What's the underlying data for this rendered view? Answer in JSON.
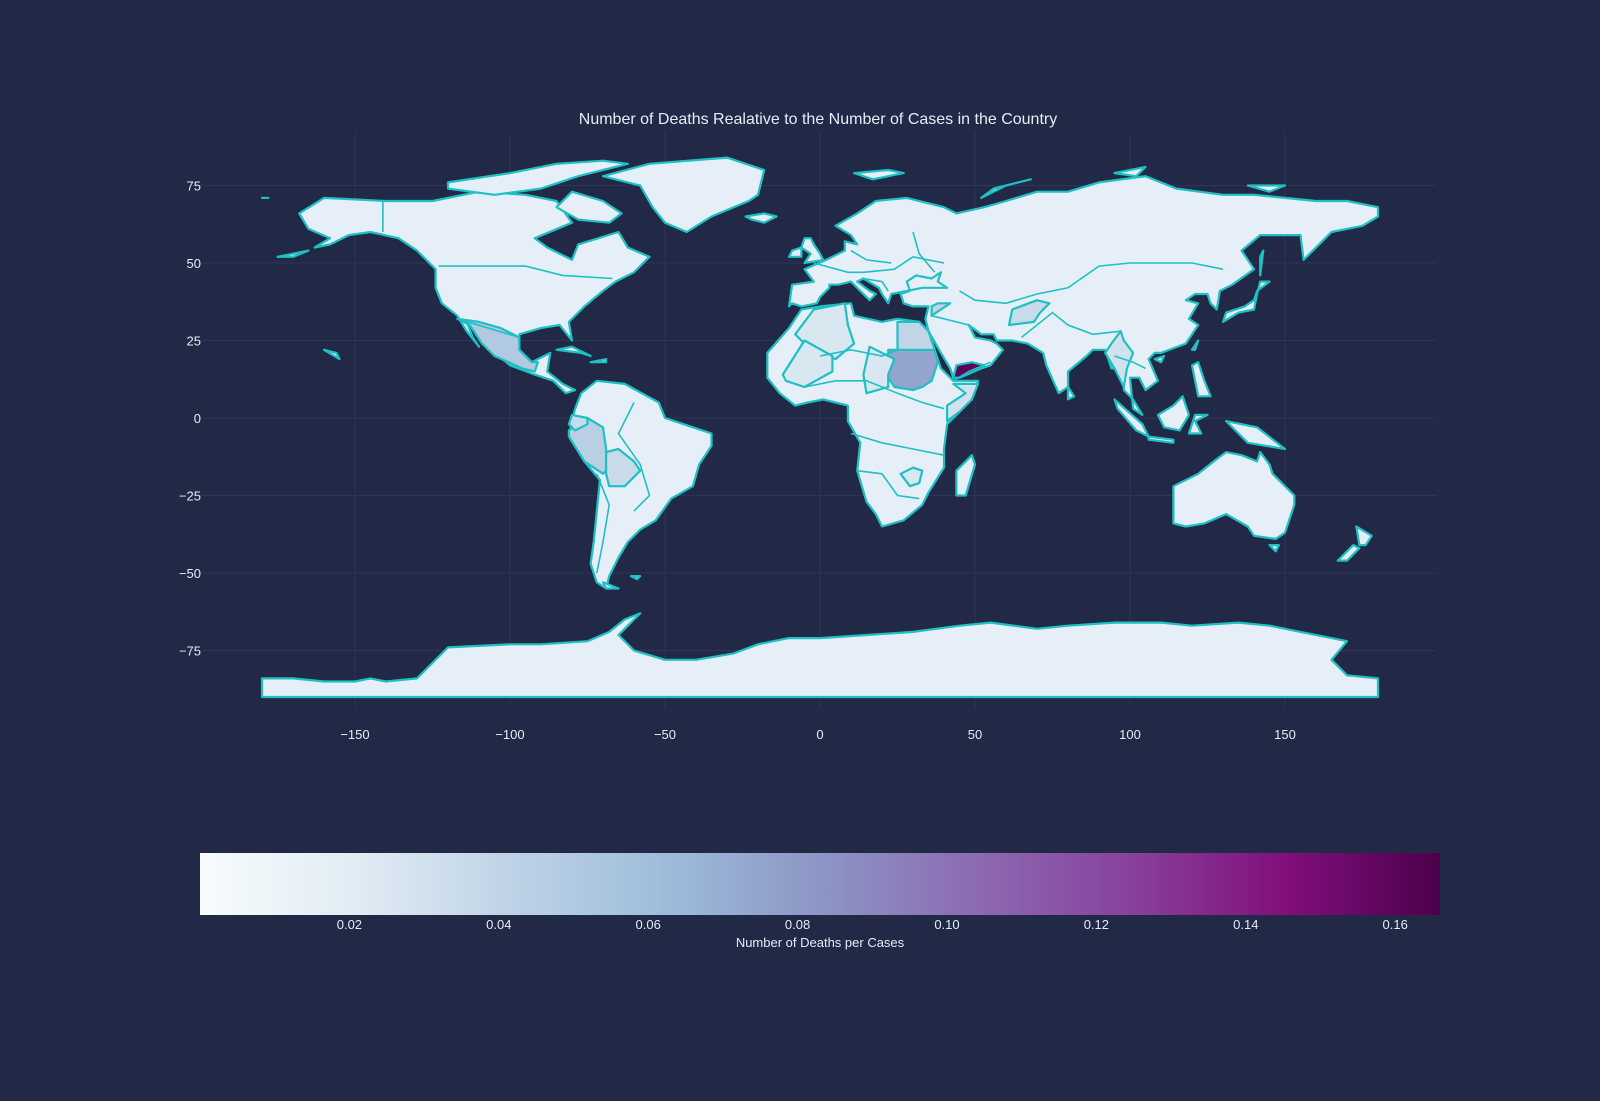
{
  "chart_data": {
    "type": "choropleth",
    "title": "Number of Deaths Realative to the Number of Cases in the Country",
    "xticks": [
      -150,
      -100,
      -50,
      0,
      50,
      100,
      150
    ],
    "yticks": [
      75,
      50,
      25,
      0,
      -25,
      -50,
      -75
    ],
    "xlim": [
      -180,
      180
    ],
    "ylim": [
      -90,
      90
    ],
    "grid": true,
    "colorscale": [
      "#f7fcfd",
      "#e0ecf4",
      "#bfd3e6",
      "#9ebcda",
      "#8c96c6",
      "#8c6bb1",
      "#88419d",
      "#810f7c",
      "#4d004b"
    ],
    "colorbar": {
      "title": "Number of Deaths per Cases",
      "range": [
        0.0,
        0.166
      ],
      "ticks": [
        0.02,
        0.04,
        0.06,
        0.08,
        0.1,
        0.12,
        0.14,
        0.16
      ],
      "tick_labels": [
        "0.02",
        "0.04",
        "0.06",
        "0.08",
        "0.10",
        "0.12",
        "0.14",
        "0.16"
      ],
      "orientation": "horizontal"
    },
    "border_color": "#1fc0c4",
    "highlighted_regions": [
      {
        "region": "Yemen",
        "value": 0.16
      },
      {
        "region": "Sudan",
        "value": 0.075
      },
      {
        "region": "Mexico",
        "value": 0.05
      },
      {
        "region": "Peru",
        "value": 0.045
      },
      {
        "region": "Egypt",
        "value": 0.04
      },
      {
        "region": "Syria",
        "value": 0.04
      },
      {
        "region": "Afghanistan",
        "value": 0.035
      },
      {
        "region": "Somalia",
        "value": 0.03
      },
      {
        "region": "Myanmar",
        "value": 0.03
      },
      {
        "region": "Bolivia",
        "value": 0.035
      },
      {
        "region": "Ecuador",
        "value": 0.035
      },
      {
        "region": "Algeria",
        "value": 0.025
      },
      {
        "region": "Zimbabwe",
        "value": 0.025
      },
      {
        "region": "Mali",
        "value": 0.025
      },
      {
        "region": "Chad",
        "value": 0.025
      }
    ]
  }
}
